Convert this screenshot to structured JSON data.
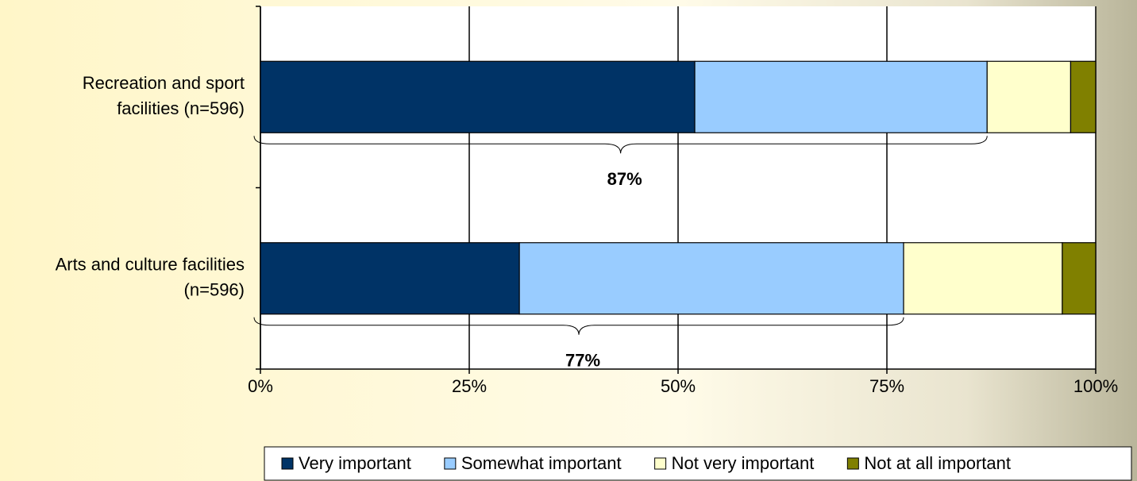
{
  "chart_data": {
    "type": "stacked-bar-horizontal",
    "categories": [
      [
        "Recreation and sport",
        "facilities (n=596)"
      ],
      [
        "Arts and culture facilities",
        "(n=596)"
      ]
    ],
    "series": [
      {
        "name": "Very important",
        "color": "#003366",
        "values": [
          52,
          31
        ]
      },
      {
        "name": "Somewhat important",
        "color": "#99ccff",
        "values": [
          35,
          46
        ]
      },
      {
        "name": "Not very important",
        "color": "#ffffcc",
        "values": [
          10,
          19
        ]
      },
      {
        "name": "Not at all important",
        "color": "#808000",
        "values": [
          3,
          4
        ]
      }
    ],
    "annotations": [
      "87%",
      "77%"
    ],
    "xlim": [
      0,
      100
    ],
    "xticks": [
      {
        "value": 0,
        "label": "0%"
      },
      {
        "value": 25,
        "label": "25%"
      },
      {
        "value": 50,
        "label": "50%"
      },
      {
        "value": 75,
        "label": "75%"
      },
      {
        "value": 100,
        "label": "100%"
      }
    ],
    "grid": true,
    "legend": "bottom"
  }
}
